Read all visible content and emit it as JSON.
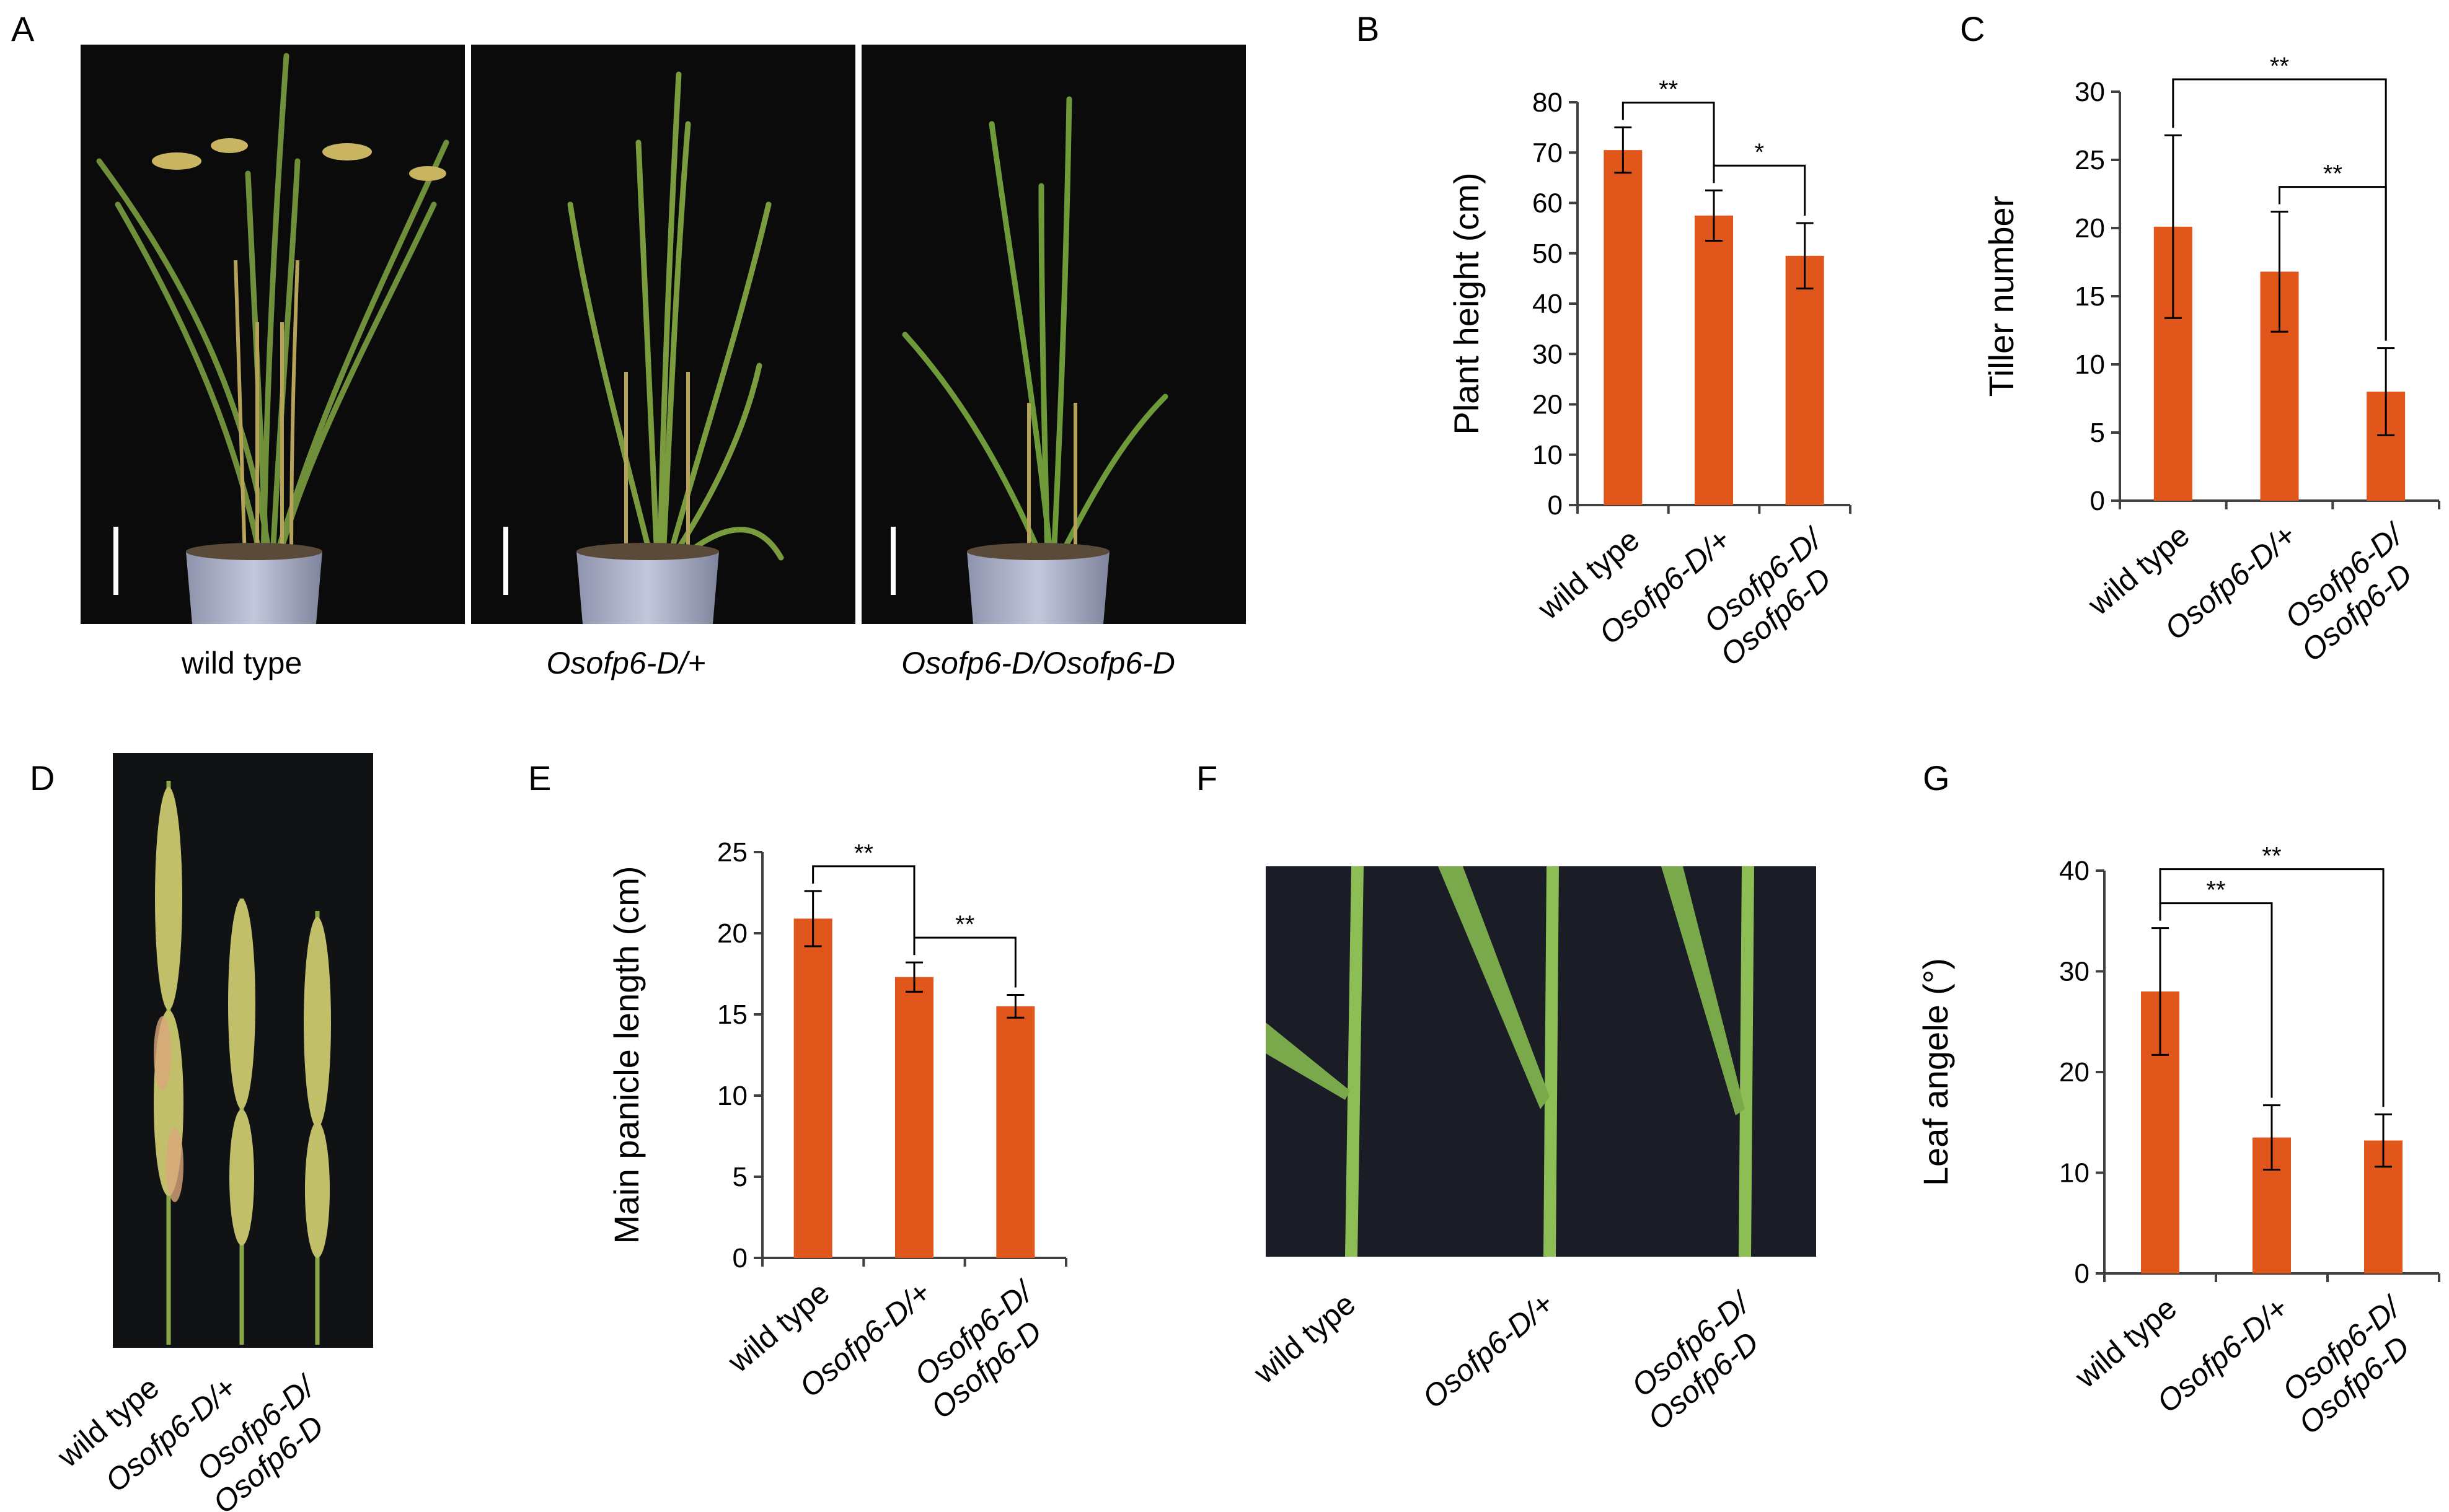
{
  "colors": {
    "bar": "#E0561B",
    "axis": "#404040",
    "photo_bg": "#0b0b0b",
    "cloth": "#1a1c26"
  },
  "panels": {
    "A": {
      "letter": "A",
      "captions": [
        {
          "text": "wild type",
          "italic": false
        },
        {
          "text": "Osofp6-D/+",
          "italic": true
        },
        {
          "text": "Osofp6-D/Osofp6-D",
          "italic": true
        }
      ]
    },
    "D": {
      "letter": "D",
      "labels": [
        {
          "lines": [
            "wild type"
          ],
          "italic": false
        },
        {
          "lines": [
            "Osofp6-D/+"
          ],
          "italic": true
        },
        {
          "lines": [
            "Osofp6-D/",
            "Osofp6-D"
          ],
          "italic": true
        }
      ]
    },
    "F": {
      "letter": "F",
      "labels": [
        {
          "lines": [
            "wild type"
          ],
          "italic": false
        },
        {
          "lines": [
            "Osofp6-D/+"
          ],
          "italic": true
        },
        {
          "lines": [
            "Osofp6-D/",
            "Osofp6-D"
          ],
          "italic": true
        }
      ]
    }
  },
  "chart_data": [
    {
      "panel": "B",
      "type": "bar",
      "ylabel": "Plant height (cm)",
      "ylim": [
        0,
        80
      ],
      "yticks": [
        "0",
        "10",
        "20",
        "30",
        "40",
        "50",
        "60",
        "70",
        "80"
      ],
      "categories": [
        {
          "lines": [
            "wild type"
          ],
          "italic": false
        },
        {
          "lines": [
            "Osofp6-D/+"
          ],
          "italic": true
        },
        {
          "lines": [
            "Osofp6-D/",
            "Osofp6-D"
          ],
          "italic": true
        }
      ],
      "values": [
        70.5,
        57.5,
        49.5
      ],
      "errors": [
        4.5,
        5.0,
        6.5
      ],
      "significance": [
        {
          "from": 0,
          "to": 1,
          "label": "**"
        },
        {
          "from": 1,
          "to": 2,
          "label": "*"
        }
      ]
    },
    {
      "panel": "C",
      "type": "bar",
      "ylabel": "Tiller number",
      "ylim": [
        0,
        30
      ],
      "yticks": [
        "0",
        "5",
        "10",
        "15",
        "20",
        "25",
        "30"
      ],
      "categories": [
        {
          "lines": [
            "wild type"
          ],
          "italic": false
        },
        {
          "lines": [
            "Osofp6-D/+"
          ],
          "italic": true
        },
        {
          "lines": [
            "Osofp6-D/",
            "Osofp6-D"
          ],
          "italic": true
        }
      ],
      "values": [
        20.1,
        16.8,
        8.0
      ],
      "errors": [
        6.7,
        4.4,
        3.2
      ],
      "significance": [
        {
          "from": 0,
          "to": 2,
          "label": "**"
        },
        {
          "from": 1,
          "to": 2,
          "label": "**"
        }
      ]
    },
    {
      "panel": "E",
      "type": "bar",
      "ylabel": "Main panicle length (cm)",
      "ylim": [
        0,
        25
      ],
      "yticks": [
        "0",
        "5",
        "10",
        "15",
        "20",
        "25"
      ],
      "categories": [
        {
          "lines": [
            "wild type"
          ],
          "italic": false
        },
        {
          "lines": [
            "Osofp6-D/+"
          ],
          "italic": true
        },
        {
          "lines": [
            "Osofp6-D/",
            "Osofp6-D"
          ],
          "italic": true
        }
      ],
      "values": [
        20.9,
        17.3,
        15.5
      ],
      "errors": [
        1.7,
        0.9,
        0.7
      ],
      "significance": [
        {
          "from": 0,
          "to": 1,
          "label": "**"
        },
        {
          "from": 1,
          "to": 2,
          "label": "**"
        }
      ]
    },
    {
      "panel": "G",
      "type": "bar",
      "ylabel": "Leaf angele (°)",
      "ylim": [
        0,
        40
      ],
      "yticks": [
        "0",
        "10",
        "20",
        "30",
        "40"
      ],
      "categories": [
        {
          "lines": [
            "wild type"
          ],
          "italic": false
        },
        {
          "lines": [
            "Osofp6-D/+"
          ],
          "italic": true
        },
        {
          "lines": [
            "Osofp6-D/",
            "Osofp6-D"
          ],
          "italic": true
        }
      ],
      "values": [
        28.0,
        13.5,
        13.2
      ],
      "errors": [
        6.3,
        3.2,
        2.6
      ],
      "significance": [
        {
          "from": 0,
          "to": 1,
          "label": "**"
        },
        {
          "from": 0,
          "to": 2,
          "label": "**"
        }
      ]
    }
  ]
}
